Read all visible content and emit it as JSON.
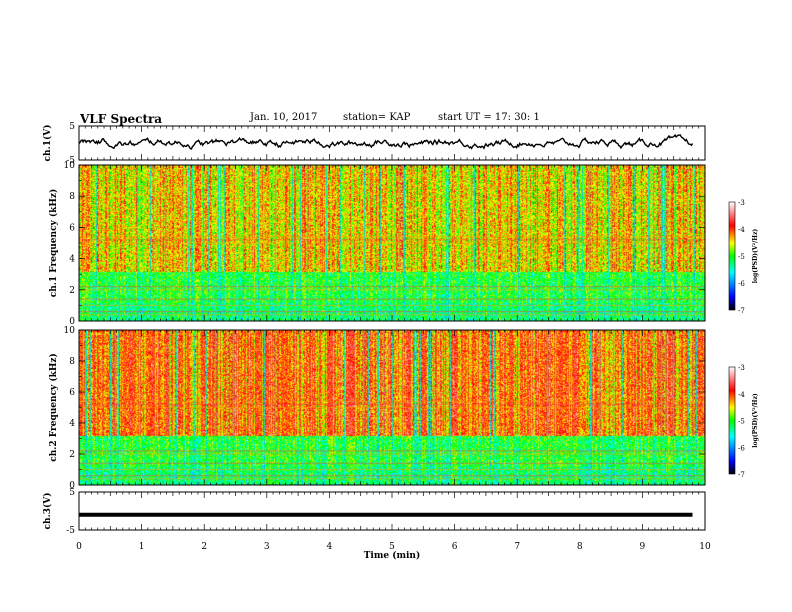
{
  "chart_data": {
    "type": "heatmap",
    "title": "VLF Spectra",
    "date": "Jan. 10, 2017",
    "station": "station= KAP",
    "start_ut": "start  UT  =   17: 30: 1",
    "xlabel": "Time  (min)",
    "xlim": [
      0,
      10
    ],
    "x_ticks": [
      "0",
      "1",
      "2",
      "3",
      "4",
      "5",
      "6",
      "7",
      "8",
      "9",
      "10"
    ],
    "panels": [
      {
        "id": "ch1-waveform",
        "type": "line",
        "ylabel": "ch.1(V)",
        "ylim": [
          -5,
          5
        ],
        "y_ticks": [
          "5",
          "-5"
        ],
        "trace": "noisy signal fluctuating roughly between -1.5 and 1.5 V"
      },
      {
        "id": "ch1-spectrogram",
        "type": "heatmap",
        "ylabel": "ch.1  Frequency  (kHz)",
        "ylim": [
          0,
          10
        ],
        "y_ticks": [
          "0",
          "2",
          "4",
          "6",
          "8",
          "10"
        ],
        "colorbar": {
          "label": "log(PSD)(V²/Hz)",
          "range": [
            -7,
            -3
          ],
          "ticks": [
            "-3",
            "-4",
            "-5",
            "-6",
            "-7"
          ]
        }
      },
      {
        "id": "ch2-spectrogram",
        "type": "heatmap",
        "ylabel": "ch.2  Frequency  (kHz)",
        "ylim": [
          0,
          10
        ],
        "y_ticks": [
          "0",
          "2",
          "4",
          "6",
          "8",
          "10"
        ],
        "colorbar": {
          "label": "log(PSD)(V²/Hz)",
          "range": [
            -7,
            -3
          ],
          "ticks": [
            "-3",
            "-4",
            "-5",
            "-6",
            "-7"
          ]
        }
      },
      {
        "id": "ch3-waveform",
        "type": "line",
        "ylabel": "ch.3(V)",
        "ylim": [
          -5,
          5
        ],
        "y_ticks": [
          "5",
          "-5"
        ],
        "trace": "flat thick line at about -1 V"
      }
    ],
    "colormap": [
      "#000000",
      "#0000ff",
      "#00ffff",
      "#00ff00",
      "#ffff00",
      "#ff0000",
      "#ffffff"
    ]
  }
}
